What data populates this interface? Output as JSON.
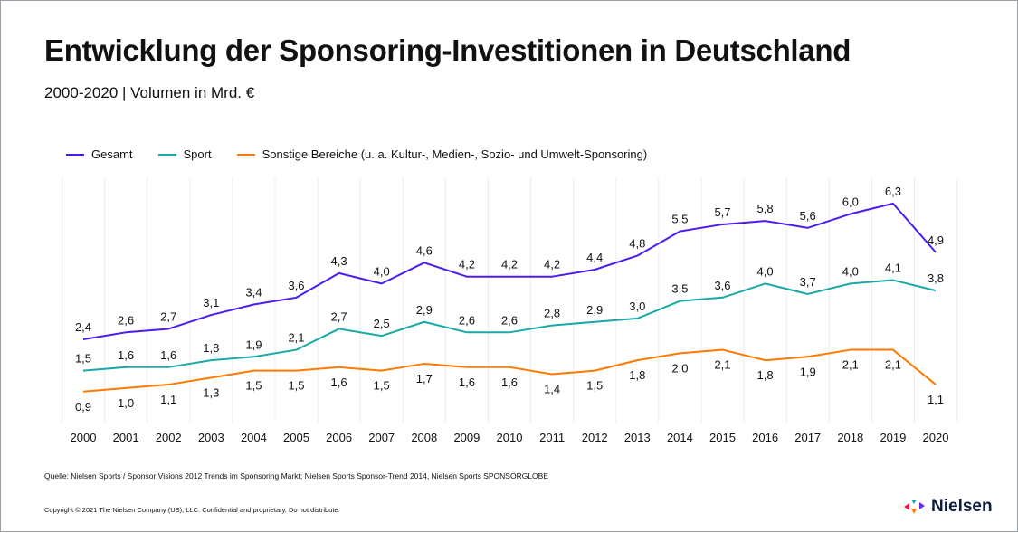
{
  "title": "Entwicklung der Sponsoring-Investitionen in Deutschland",
  "subtitle": "2000-2020 | Volumen in Mrd. €",
  "source": "Quelle: Nielsen Sports / Sponsor Visions 2012 Trends im Sponsoring Markt; Nielsen Sports Sponsor-Trend 2014, Nielsen Sports SPONSORGLOBE",
  "copyright": "Copyright © 2021 The Nielsen Company (US), LLC. Confidential and proprietary. Do not distribute.",
  "logo": "Nielsen",
  "chart_data": {
    "type": "line",
    "title": "Entwicklung der Sponsoring-Investitionen in Deutschland",
    "legend_position": "top-left",
    "grid": "vertical",
    "categories": [
      "2000",
      "2001",
      "2002",
      "2003",
      "2004",
      "2005",
      "2006",
      "2007",
      "2008",
      "2009",
      "2010",
      "2011",
      "2012",
      "2013",
      "2014",
      "2015",
      "2016",
      "2017",
      "2018",
      "2019",
      "2020"
    ],
    "series": [
      {
        "name": "Gesamt",
        "color": "#4b1cf0",
        "values": [
          2.4,
          2.6,
          2.7,
          3.1,
          3.4,
          3.6,
          4.3,
          4.0,
          4.6,
          4.2,
          4.2,
          4.2,
          4.4,
          4.8,
          5.5,
          5.7,
          5.8,
          5.6,
          6.0,
          6.3,
          4.9
        ]
      },
      {
        "name": "Sport",
        "color": "#1aa9a4",
        "values": [
          1.5,
          1.6,
          1.6,
          1.8,
          1.9,
          2.1,
          2.7,
          2.5,
          2.9,
          2.6,
          2.6,
          2.8,
          2.9,
          3.0,
          3.5,
          3.6,
          4.0,
          3.7,
          4.0,
          4.1,
          3.8
        ]
      },
      {
        "name": "Sonstige Bereiche (u. a. Kultur-, Medien-, Sozio- und Umwelt-Sponsoring)",
        "color": "#ff7a00",
        "values": [
          0.9,
          1.0,
          1.1,
          1.3,
          1.5,
          1.5,
          1.6,
          1.5,
          1.7,
          1.6,
          1.6,
          1.4,
          1.5,
          1.8,
          2.0,
          2.1,
          1.8,
          1.9,
          2.1,
          2.1,
          1.1
        ]
      }
    ]
  }
}
